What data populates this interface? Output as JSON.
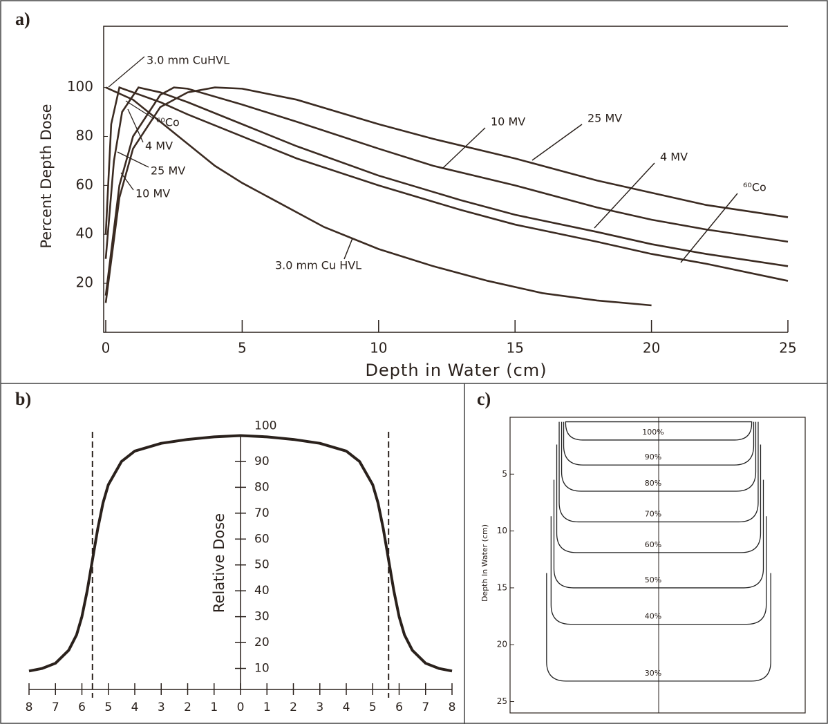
{
  "chart_data": [
    {
      "type": "line",
      "title": "a)",
      "x_label": "Depth in Water (cm)",
      "y_label": "Percent Depth Dose",
      "xlim": [
        0,
        25
      ],
      "xticks": [
        0,
        5,
        10,
        15,
        20,
        25
      ],
      "ylim": [
        0,
        125
      ],
      "yticks": [
        20,
        40,
        60,
        80,
        100
      ],
      "series": [
        {
          "name": "3.0 mm Cu HVL",
          "color": "#3b2b22",
          "x": [
            0,
            1,
            2,
            3,
            4,
            5,
            6,
            8,
            10,
            12,
            14,
            16,
            18,
            20
          ],
          "values": [
            100,
            95,
            86,
            77,
            68,
            61,
            55,
            43,
            34,
            27,
            21,
            16,
            13,
            11
          ]
        },
        {
          "name": "⁶⁰Co",
          "color": "#3b2b22",
          "x": [
            0,
            0.2,
            0.5,
            1,
            2,
            3,
            5,
            7,
            10,
            13,
            15,
            18,
            20,
            22,
            25
          ],
          "values": [
            40,
            85,
            100,
            98,
            94,
            89,
            80,
            71,
            60,
            50,
            44,
            37,
            32,
            28,
            21
          ]
        },
        {
          "name": "4 MV",
          "color": "#3b2b22",
          "x": [
            0,
            0.3,
            0.6,
            1.2,
            2,
            3,
            5,
            7,
            10,
            13,
            15,
            18,
            20,
            22,
            25
          ],
          "values": [
            30,
            70,
            90,
            100,
            98,
            94,
            85,
            76,
            64,
            54,
            48,
            41,
            36,
            32,
            27
          ]
        },
        {
          "name": "10 MV",
          "color": "#3b2b22",
          "x": [
            0,
            0.5,
            1,
            2,
            2.5,
            3,
            5,
            7,
            10,
            12,
            15,
            18,
            20,
            22,
            25
          ],
          "values": [
            15,
            60,
            80,
            97,
            100,
            99.5,
            93,
            86,
            75,
            68,
            60,
            51,
            46,
            42,
            37
          ]
        },
        {
          "name": "25 MV",
          "color": "#3b2b22",
          "x": [
            0,
            0.5,
            1,
            2,
            3,
            4,
            5,
            7,
            10,
            12,
            15,
            18,
            20,
            22,
            25
          ],
          "values": [
            12,
            55,
            75,
            92,
            98,
            100,
            99.5,
            95,
            85,
            79,
            71,
            62,
            57,
            52,
            47
          ]
        }
      ],
      "annotations": [
        "3.0 mm CuHVL",
        "⁶⁰Co",
        "4 MV",
        "25 MV",
        "10 MV"
      ]
    },
    {
      "type": "profile",
      "title": "b)",
      "y_label": "Relative Dose",
      "color": "#2a211c",
      "x": [
        -8,
        -7.5,
        -7,
        -6.5,
        -6.2,
        -6,
        -5.8,
        -5.6,
        -5.4,
        -5.2,
        -5,
        -4.5,
        -4,
        -3,
        -2,
        -1,
        0,
        1,
        2,
        3,
        4,
        4.5,
        5,
        5.2,
        5.4,
        5.6,
        5.8,
        6,
        6.2,
        6.5,
        7,
        7.5,
        8
      ],
      "values": [
        9,
        10,
        12,
        17,
        23,
        30,
        40,
        52,
        64,
        74,
        81,
        90,
        94,
        97,
        98.5,
        99.5,
        100,
        99.5,
        98.5,
        97,
        94,
        90,
        81,
        74,
        64,
        52,
        40,
        30,
        23,
        17,
        12,
        10,
        9
      ],
      "field_edges": [
        -5.6,
        5.6
      ],
      "xlim": [
        -8,
        8
      ],
      "xticks": [
        {
          "value": -8,
          "label": "8"
        },
        {
          "value": -7,
          "label": "7"
        },
        {
          "value": -6,
          "label": "6"
        },
        {
          "value": -5,
          "label": "5"
        },
        {
          "value": -4,
          "label": "4"
        },
        {
          "value": -3,
          "label": "3"
        },
        {
          "value": -2,
          "label": "2"
        },
        {
          "value": -1,
          "label": "1"
        },
        0,
        1,
        2,
        3,
        4,
        5,
        6,
        7,
        8
      ],
      "ylim": [
        0,
        110
      ],
      "yticks": [
        10,
        20,
        30,
        40,
        50,
        60,
        70,
        80,
        90,
        100
      ]
    },
    {
      "type": "isodose",
      "title": "c)",
      "y_label": "Depth In Water (cm)",
      "color": "#222222",
      "categories": [
        "100%",
        "90%",
        "80%",
        "70%",
        "60%",
        "50%",
        "40%",
        "30%"
      ],
      "values": [
        2.0,
        4.2,
        6.5,
        9.2,
        11.9,
        15.0,
        18.2,
        23.2
      ],
      "ylim": [
        0,
        26
      ],
      "yticks": [
        5,
        10,
        15,
        20,
        25
      ],
      "invert_y": true
    }
  ]
}
